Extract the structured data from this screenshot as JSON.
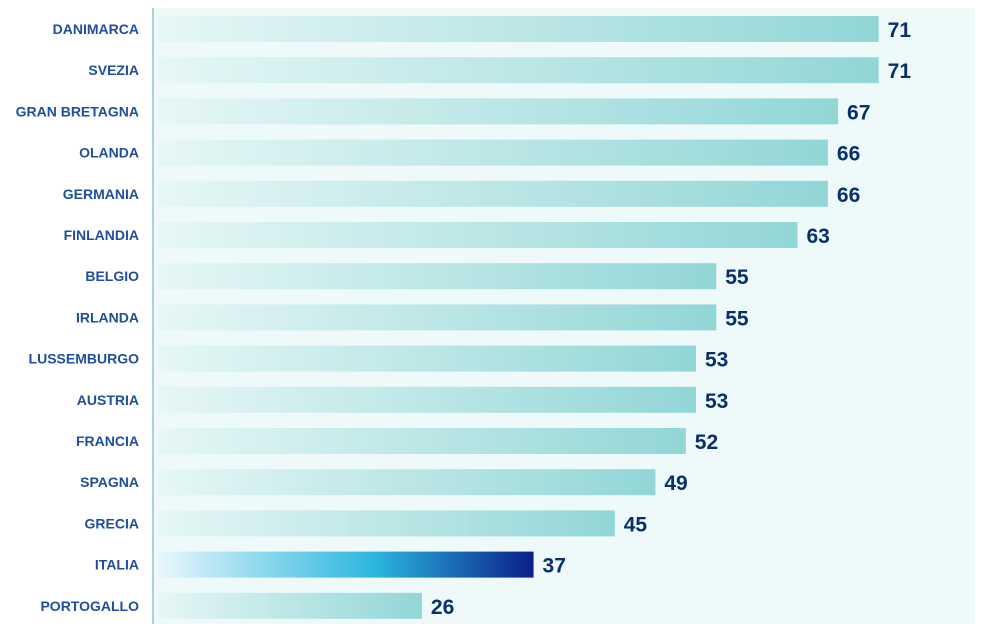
{
  "chart_data": {
    "type": "bar",
    "orientation": "horizontal",
    "categories": [
      "DANIMARCA",
      "SVEZIA",
      "GRAN BRETAGNA",
      "OLANDA",
      "GERMANIA",
      "FINLANDIA",
      "BELGIO",
      "IRLANDA",
      "LUSSEMBURGO",
      "AUSTRIA",
      "FRANCIA",
      "SPAGNA",
      "GRECIA",
      "ITALIA",
      "PORTOGALLO"
    ],
    "values": [
      71,
      71,
      67,
      66,
      66,
      63,
      55,
      55,
      53,
      53,
      52,
      49,
      45,
      37,
      26
    ],
    "value_labels": [
      "71",
      "71",
      "67",
      "66",
      "66",
      "63",
      "55",
      "55",
      "53",
      "53",
      "52",
      "49",
      "45",
      "37",
      "26"
    ],
    "highlight_category": "ITALIA",
    "xlim": [
      0,
      80
    ],
    "grid": false,
    "legend": "none",
    "colors": {
      "bar_start": "#e6f7f6",
      "bar_end": "#92d6d6",
      "highlight_start": "#e9f7fb",
      "highlight_mid": "#2ab6de",
      "highlight_end": "#0a1f8a",
      "plot_background": "#eef9f9",
      "axis": "#8fc6c8",
      "category_text": "#1f4f9a",
      "value_text": "#0b2f6b"
    }
  }
}
